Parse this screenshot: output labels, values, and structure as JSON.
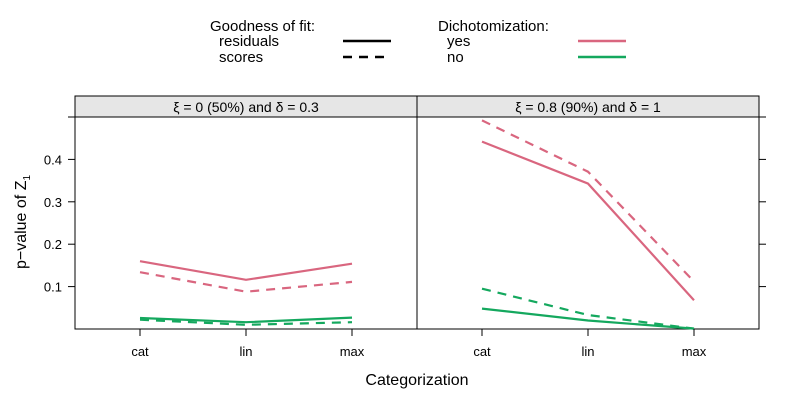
{
  "legend": {
    "gof_title": "Goodness of fit:",
    "gof_items": [
      {
        "label": "residuals",
        "style": "solid"
      },
      {
        "label": "scores",
        "style": "dashed"
      }
    ],
    "dich_title": "Dichotomization:",
    "dich_items": [
      {
        "label": "yes",
        "color": "#D9667F"
      },
      {
        "label": "no",
        "color": "#14A85E"
      }
    ]
  },
  "chart_data": {
    "type": "line",
    "xlabel": "Categorization",
    "ylabel": "p−value of Z",
    "ylabel_subscript": "1",
    "categories": [
      "cat",
      "lin",
      "max"
    ],
    "ylim": [
      0,
      0.5
    ],
    "yticks": [
      "0.1",
      "0.2",
      "0.3",
      "0.4"
    ],
    "grid": false,
    "panels": [
      {
        "strip": "ξ = 0 (50%)  and δ = 0.3",
        "series": [
          {
            "dichotomization": "yes",
            "fit": "residuals",
            "values": [
              0.16,
              0.116,
              0.154
            ]
          },
          {
            "dichotomization": "yes",
            "fit": "scores",
            "values": [
              0.134,
              0.088,
              0.111
            ]
          },
          {
            "dichotomization": "no",
            "fit": "residuals",
            "values": [
              0.026,
              0.016,
              0.027
            ]
          },
          {
            "dichotomization": "no",
            "fit": "scores",
            "values": [
              0.022,
              0.01,
              0.016
            ]
          }
        ]
      },
      {
        "strip": "ξ = 0.8 (90%)  and δ = 1",
        "series": [
          {
            "dichotomization": "yes",
            "fit": "residuals",
            "values": [
              0.442,
              0.343,
              0.068
            ]
          },
          {
            "dichotomization": "yes",
            "fit": "scores",
            "values": [
              0.492,
              0.371,
              0.112
            ]
          },
          {
            "dichotomization": "no",
            "fit": "residuals",
            "values": [
              0.048,
              0.02,
              0.001
            ]
          },
          {
            "dichotomization": "no",
            "fit": "scores",
            "values": [
              0.095,
              0.033,
              0.001
            ]
          }
        ]
      }
    ]
  }
}
